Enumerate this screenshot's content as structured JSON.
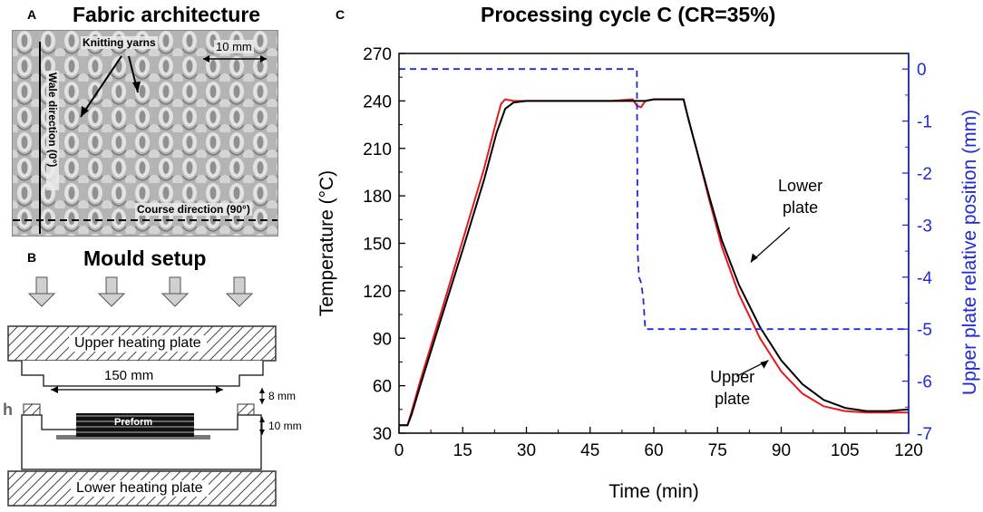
{
  "panel_a": {
    "letter": "A",
    "title": "Fabric architecture",
    "labels": {
      "knitting_yarns": "Knitting yarns",
      "scale_bar": "10 mm",
      "wale_direction": "Wale direction (0°)",
      "course_direction": "Course direction (90°)"
    }
  },
  "panel_b": {
    "letter": "B",
    "title": "Mould setup",
    "labels": {
      "upper_plate": "Upper heating plate",
      "lower_plate": "Lower heating plate",
      "width": "150 mm",
      "gap": "8 mm",
      "h_symbol": "h",
      "height": "10 mm",
      "preform": "Preform"
    }
  },
  "panel_c": {
    "letter": "C",
    "title": "Processing cycle C (CR=35%)"
  },
  "colors": {
    "lower_plate": "#000000",
    "upper_plate": "#e8191c",
    "position": "#1f2bd6",
    "right_axis": "#1f2bd6"
  },
  "chart_data": {
    "type": "line",
    "title": "Processing cycle C (CR=35%)",
    "xlabel": "Time (min)",
    "ylabel": "Temperature (°C)",
    "y2label": "Upper plate relative position (mm)",
    "xlim": [
      0,
      120
    ],
    "ylim": [
      30,
      270
    ],
    "y2lim": [
      -7,
      0.3
    ],
    "xticks": [
      0,
      15,
      30,
      45,
      60,
      75,
      90,
      105,
      120
    ],
    "yticks": [
      30,
      60,
      90,
      120,
      150,
      180,
      210,
      240,
      270
    ],
    "y2ticks": [
      0,
      -1,
      -2,
      -3,
      -4,
      -5,
      -6,
      -7
    ],
    "annotations": [
      {
        "text": [
          "Lower",
          "plate"
        ],
        "points_to": "Lower plate"
      },
      {
        "text": [
          "Upper",
          "plate"
        ],
        "points_to": "Upper plate"
      }
    ],
    "series": [
      {
        "name": "Lower plate",
        "axis": "left",
        "style": "solid",
        "x": [
          0,
          2,
          3,
          5,
          10,
          15,
          20,
          23,
          25,
          27,
          30,
          40,
          50,
          56,
          58,
          60,
          67,
          68,
          69,
          70,
          73,
          76,
          80,
          85,
          90,
          95,
          100,
          105,
          110,
          115,
          120
        ],
        "y": [
          35,
          35,
          42,
          60,
          103,
          146,
          190,
          220,
          235,
          239,
          240,
          240,
          240,
          240,
          240,
          241,
          241,
          230,
          220,
          210,
          180,
          152,
          124,
          97,
          76,
          61,
          51,
          46,
          44,
          44,
          45
        ]
      },
      {
        "name": "Upper plate",
        "axis": "left",
        "style": "solid",
        "x": [
          0,
          2,
          3,
          5,
          10,
          15,
          20,
          23,
          24,
          25,
          27,
          30,
          40,
          50,
          55,
          56,
          57,
          58,
          60,
          67,
          68,
          69,
          70,
          73,
          76,
          80,
          85,
          90,
          95,
          100,
          105,
          110,
          115,
          120
        ],
        "y": [
          35,
          35,
          44,
          63,
          107,
          152,
          197,
          228,
          238,
          241,
          240,
          240,
          240,
          240,
          241,
          237,
          236,
          240,
          241,
          241,
          230,
          220,
          210,
          178,
          148,
          118,
          90,
          69,
          55,
          47,
          44,
          43,
          43,
          43
        ],
        "note": "drawn in red"
      },
      {
        "name": "Upper plate relative position",
        "axis": "right",
        "style": "dashed",
        "x": [
          0,
          56,
          56.2,
          56.5,
          57,
          57.5,
          58,
          120
        ],
        "y": [
          0,
          0,
          -3.5,
          -4.0,
          -4.1,
          -4.4,
          -5.0,
          -5.0
        ]
      }
    ]
  }
}
